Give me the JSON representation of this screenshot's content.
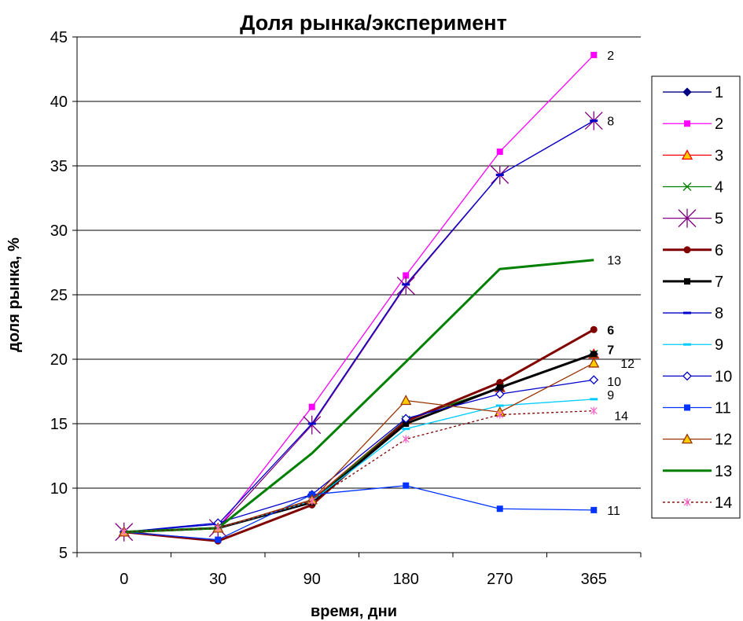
{
  "chart_data": {
    "type": "line",
    "title": "Доля рынка/эксперимент",
    "xlabel": "время, дни",
    "ylabel": "доля рынка, %",
    "categories": [
      "0",
      "30",
      "90",
      "180",
      "270",
      "365"
    ],
    "ylim": [
      5,
      45
    ],
    "yticks": [
      5,
      10,
      15,
      20,
      25,
      30,
      35,
      40,
      45
    ],
    "grid": "horizontal",
    "legend_position": "right",
    "series": [
      {
        "name": "1",
        "values": [
          6.6,
          6.9,
          9.0,
          15.3,
          17.8,
          20.4
        ],
        "color": "#000080",
        "marker": "diamond-filled",
        "dash": "",
        "width": 1.3
      },
      {
        "name": "2",
        "values": [
          6.6,
          6.9,
          16.3,
          26.5,
          36.1,
          43.6
        ],
        "color": "#ff00ff",
        "marker": "square-filled",
        "dash": "",
        "width": 1.3,
        "end_label": "2"
      },
      {
        "name": "3",
        "values": [
          6.6,
          6.9,
          9.1,
          15.3,
          17.8,
          20.4
        ],
        "color": "#ff0000",
        "marker": "triangle-yellow",
        "dash": "",
        "width": 1.3
      },
      {
        "name": "4",
        "values": [
          6.6,
          6.9,
          9.0,
          15.3,
          17.8,
          20.4
        ],
        "color": "#008000",
        "marker": "x",
        "dash": "",
        "width": 1.3
      },
      {
        "name": "5",
        "values": [
          6.6,
          6.9,
          14.9,
          25.7,
          34.3,
          38.5
        ],
        "color": "#800080",
        "marker": "asterisk",
        "dash": "",
        "width": 1.3
      },
      {
        "name": "6",
        "values": [
          6.6,
          5.9,
          8.7,
          15.2,
          18.2,
          22.3
        ],
        "color": "#800000",
        "marker": "circle-filled",
        "dash": "",
        "width": 3,
        "end_label": "6",
        "end_bold": true
      },
      {
        "name": "7",
        "values": [
          6.6,
          6.9,
          8.9,
          15.0,
          17.8,
          20.4
        ],
        "color": "#000000",
        "marker": "square-filled",
        "dash": "",
        "width": 3,
        "end_label": "7",
        "end_bold": true
      },
      {
        "name": "8",
        "values": [
          6.6,
          7.2,
          15.0,
          25.8,
          34.3,
          38.5
        ],
        "color": "#0000cc",
        "marker": "dash",
        "dash": "",
        "width": 1.3,
        "end_label": "8"
      },
      {
        "name": "9",
        "values": [
          6.6,
          6.9,
          9.0,
          14.6,
          16.4,
          16.9
        ],
        "color": "#00ccff",
        "marker": "dash",
        "dash": "",
        "width": 1.3,
        "end_label": "9"
      },
      {
        "name": "10",
        "values": [
          6.6,
          7.3,
          9.5,
          15.4,
          17.3,
          18.4
        ],
        "color": "#0000cc",
        "marker": "diamond-open",
        "dash": "",
        "width": 1.3,
        "end_label": "10"
      },
      {
        "name": "11",
        "values": [
          6.6,
          6.0,
          9.5,
          10.2,
          8.4,
          8.3
        ],
        "color": "#0033ff",
        "marker": "square-filled",
        "dash": "",
        "width": 1.3,
        "end_label": "11"
      },
      {
        "name": "12",
        "values": [
          6.6,
          6.9,
          9.1,
          16.8,
          15.9,
          19.7
        ],
        "color": "#993300",
        "marker": "triangle-yellow",
        "dash": "",
        "width": 1.3,
        "end_label": "12"
      },
      {
        "name": "13",
        "values": [
          6.6,
          6.9,
          12.7,
          19.8,
          27.0,
          27.7
        ],
        "color": "#008000",
        "marker": "none",
        "dash": "",
        "width": 3,
        "end_label": "13"
      },
      {
        "name": "14",
        "values": [
          6.6,
          6.9,
          9.0,
          13.8,
          15.7,
          16.0
        ],
        "color": "#800000",
        "marker": "asterisk-pink",
        "dash": "3,3",
        "width": 1.3,
        "end_label": "14"
      }
    ]
  }
}
